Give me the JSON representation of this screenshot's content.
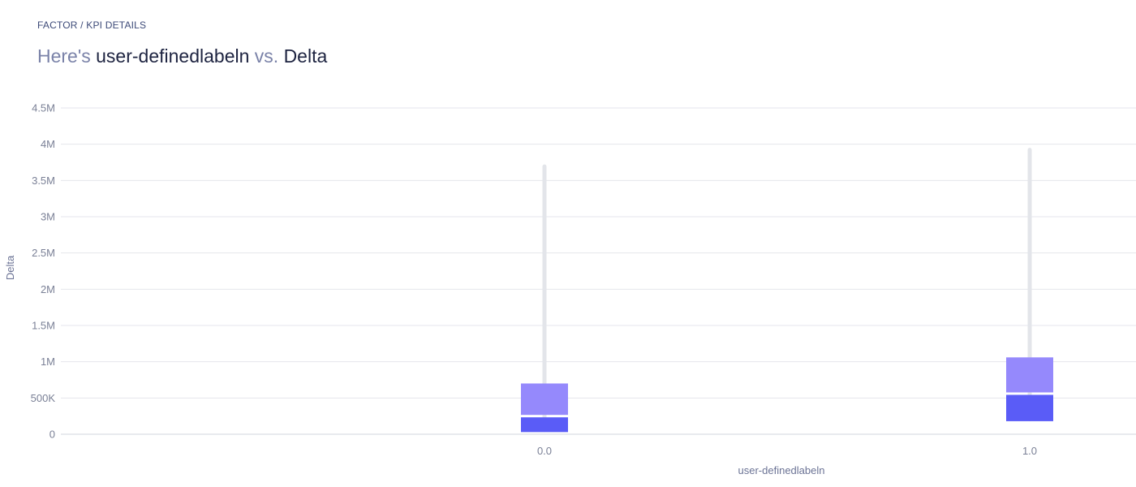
{
  "header": {
    "breadcrumb": "FACTOR / KPI DETAILS",
    "title_prefix": "Here's",
    "title_x": "user-definedlabeln",
    "title_vs": "vs.",
    "title_y": "Delta"
  },
  "chart_data": {
    "type": "boxplot",
    "xlabel": "user-definedlabeln",
    "ylabel": "Delta",
    "ylim": [
      0,
      4500000
    ],
    "yticks": [
      0,
      500000,
      1000000,
      1500000,
      2000000,
      2500000,
      3000000,
      3500000,
      4000000,
      4500000
    ],
    "ytick_labels": [
      "0",
      "500K",
      "1M",
      "1.5M",
      "2M",
      "2.5M",
      "3M",
      "3.5M",
      "4M",
      "4.5M"
    ],
    "categories": [
      "0.0",
      "1.0"
    ],
    "boxes": [
      {
        "category": "0.0",
        "min": 30000,
        "q1": 30000,
        "median": 250000,
        "q3": 700000,
        "max": 3720000
      },
      {
        "category": "1.0",
        "min": 180000,
        "q1": 180000,
        "median": 560000,
        "q3": 1060000,
        "max": 3950000
      }
    ],
    "colors": {
      "lower_box": "#5a5cf7",
      "upper_box": "#9589fc",
      "whisker": "#e3e5ea",
      "grid": "#e4e6ec"
    },
    "grid": true
  }
}
